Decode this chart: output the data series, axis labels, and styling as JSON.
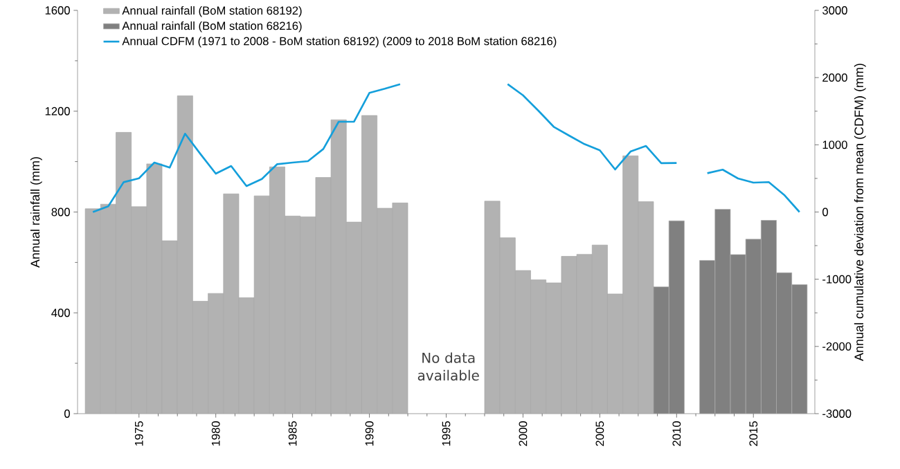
{
  "chart_data": {
    "type": "bar",
    "ylabel": "Annual rainfall (mm)",
    "y2label": "Annual cumulative deviation from mean (CDFM) (mm)",
    "xlim": [
      1971,
      2019
    ],
    "xticks": [
      1975,
      1980,
      1985,
      1990,
      1995,
      2000,
      2005,
      2010,
      2015
    ],
    "ylim": [
      0,
      1600
    ],
    "yticks": [
      0,
      400,
      800,
      1200,
      1600
    ],
    "y2lim": [
      -3000,
      3000
    ],
    "y2ticks": [
      -3000,
      -2000,
      -1000,
      0,
      1000,
      2000,
      3000
    ],
    "legend": "top left",
    "annotations": [
      "No data available"
    ],
    "series": [
      {
        "name": "Annual rainfall (BoM station 68192)",
        "color": "#b2b2b2",
        "x": [
          1972,
          1973,
          1974,
          1975,
          1976,
          1977,
          1978,
          1979,
          1980,
          1981,
          1982,
          1983,
          1984,
          1985,
          1986,
          1987,
          1988,
          1989,
          1990,
          1991,
          1992,
          1998,
          1999,
          2000,
          2001,
          2002,
          2003,
          2004,
          2005,
          2006,
          2007,
          2008
        ],
        "values": [
          813,
          831,
          1116,
          821,
          991,
          686,
          1261,
          446,
          477,
          872,
          460,
          864,
          979,
          784,
          781,
          937,
          1166,
          760,
          1183,
          815,
          836,
          843,
          698,
          568,
          531,
          519,
          624,
          632,
          669,
          475,
          1023,
          841
        ]
      },
      {
        "name": "Annual rainfall (BoM station 68216)",
        "color": "#808080",
        "x": [
          2009,
          2010,
          2012,
          2013,
          2014,
          2015,
          2016,
          2017,
          2018
        ],
        "values": [
          503,
          765,
          608,
          811,
          631,
          692,
          767,
          559,
          512
        ]
      },
      {
        "name": "Annual CDFM (1971 to 2008 - BoM station 68192) (2009 to 2018 BoM station 68216)",
        "color": "#149fdb",
        "type": "line",
        "axis": "y2",
        "x": [
          1972,
          1973,
          1974,
          1975,
          1976,
          1977,
          1978,
          1979,
          1980,
          1981,
          1982,
          1983,
          1984,
          1985,
          1986,
          1987,
          1988,
          1989,
          1990,
          1991,
          1992,
          1993,
          1994,
          1995,
          1996,
          1997,
          1998,
          1999,
          2000,
          2001,
          2002,
          2003,
          2004,
          2005,
          2006,
          2007,
          2008,
          2009,
          2010,
          2011,
          2012,
          2013,
          2014,
          2015,
          2016,
          2017,
          2018
        ],
        "values": [
          0,
          84,
          444,
          502,
          736,
          661,
          1165,
          863,
          571,
          684,
          386,
          492,
          712,
          736,
          756,
          938,
          1343,
          1343,
          1772,
          1834,
          1902,
          null,
          null,
          null,
          null,
          null,
          null,
          1902,
          1737,
          1508,
          1268,
          1137,
          1010,
          918,
          633,
          900,
          983,
          726,
          729,
          null,
          578,
          630,
          499,
          437,
          445,
          255,
          0
        ]
      }
    ]
  }
}
